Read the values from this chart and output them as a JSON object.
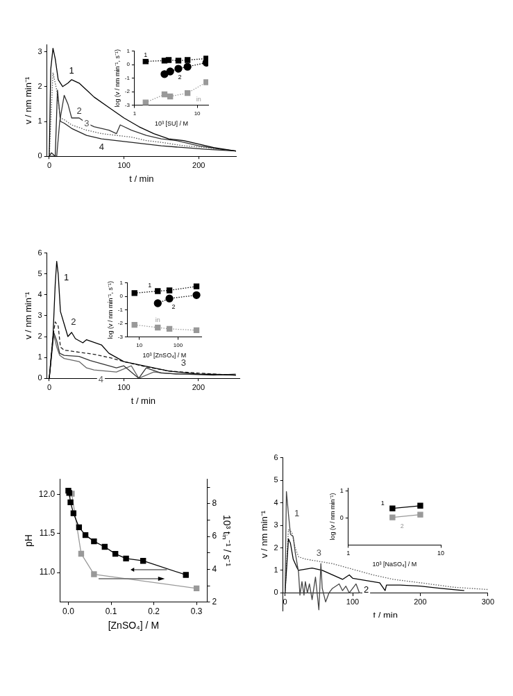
{
  "chart_data": [
    {
      "type": "line",
      "xlabel": "t / min",
      "ylabel": "v / nm min⁻¹",
      "xlim": [
        -3,
        250
      ],
      "ylim": [
        0,
        3.2
      ],
      "xticks": [
        0,
        100,
        200
      ],
      "yticks": [
        0,
        1,
        2,
        3
      ],
      "series": [
        {
          "name": "1",
          "color": "#000000",
          "line_style": "solid",
          "x": [
            0,
            2,
            5,
            8,
            12,
            18,
            25,
            30,
            40,
            50,
            60,
            80,
            100,
            120,
            140,
            160,
            180,
            200,
            220,
            250
          ],
          "values": [
            0,
            2.5,
            3.1,
            2.8,
            2.2,
            2.0,
            2.1,
            2.2,
            2.1,
            1.9,
            1.7,
            1.4,
            1.1,
            0.85,
            0.65,
            0.5,
            0.45,
            0.35,
            0.25,
            0.15
          ]
        },
        {
          "name": "2",
          "color": "#333333",
          "line_style": "solid",
          "x": [
            0,
            10,
            14,
            20,
            25,
            30,
            40,
            50,
            60,
            80,
            90,
            95,
            110,
            130,
            150,
            170,
            200,
            230,
            250
          ],
          "values": [
            0,
            0,
            1.0,
            1.75,
            1.5,
            1.1,
            1.1,
            0.95,
            0.85,
            0.75,
            0.65,
            0.9,
            0.75,
            0.6,
            0.5,
            0.45,
            0.3,
            0.2,
            0.15
          ]
        },
        {
          "name": "3",
          "color": "#555555",
          "line_style": "dotted",
          "x": [
            0,
            5,
            10,
            15,
            20,
            30,
            50,
            70,
            90,
            110,
            130,
            150,
            180,
            210,
            250
          ],
          "values": [
            0,
            2.4,
            1.9,
            1.1,
            1.05,
            0.9,
            0.75,
            0.65,
            0.6,
            0.55,
            0.45,
            0.4,
            0.3,
            0.25,
            0.15
          ]
        },
        {
          "name": "4",
          "color": "#222222",
          "line_style": "solid",
          "x": [
            0,
            3,
            8,
            11,
            15,
            20,
            30,
            50,
            70,
            90,
            110,
            130,
            150,
            180,
            210,
            250
          ],
          "values": [
            0,
            0.1,
            0,
            1.9,
            1.0,
            0.95,
            0.8,
            0.6,
            0.5,
            0.45,
            0.4,
            0.35,
            0.3,
            0.25,
            0.2,
            0.15
          ]
        }
      ]
    },
    {
      "type": "line",
      "xlabel": "10³ [SU] / M",
      "ylabel": "log (v / nm min⁻¹, s⁻¹)",
      "log": "x",
      "xlim": [
        1,
        15
      ],
      "ylim": [
        -3,
        1
      ],
      "xticks": [
        1,
        10
      ],
      "yticks": [
        -3,
        -2,
        -1,
        0,
        1
      ],
      "line_style": "dotted",
      "series": [
        {
          "name": "1",
          "color": "#000000",
          "marker": "square",
          "x": [
            1.5,
            3,
            3.5,
            5,
            7,
            14
          ],
          "values": [
            0.25,
            0.3,
            0.35,
            0.3,
            0.35,
            0.45
          ]
        },
        {
          "name": "2",
          "color": "#000000",
          "marker": "circle",
          "x": [
            3,
            3.7,
            5,
            7,
            14
          ],
          "values": [
            -0.7,
            -0.5,
            -0.3,
            -0.15,
            0.15
          ]
        },
        {
          "name": "in",
          "color": "#999999",
          "marker": "square",
          "x": [
            1.5,
            3,
            3.7,
            7,
            14
          ],
          "values": [
            -2.8,
            -2.2,
            -2.35,
            -2.1,
            -1.3
          ]
        }
      ]
    },
    {
      "type": "line",
      "xlabel": "t / min",
      "ylabel": "v / nm min⁻¹",
      "xlim": [
        -3,
        255
      ],
      "ylim": [
        0,
        6
      ],
      "xticks": [
        0,
        100,
        200
      ],
      "yticks": [
        0,
        1,
        2,
        3,
        4,
        5,
        6
      ],
      "series": [
        {
          "name": "1",
          "color": "#000000",
          "line_style": "solid",
          "x": [
            0,
            5,
            8,
            10,
            12,
            15,
            20,
            25,
            30,
            35,
            45,
            50,
            70,
            80,
            100,
            120,
            140,
            160,
            200,
            250
          ],
          "values": [
            0,
            2,
            4.5,
            5.6,
            5.0,
            3.2,
            2.6,
            2.0,
            2.2,
            1.9,
            1.7,
            1.85,
            1.6,
            1.2,
            0.8,
            0.65,
            0.5,
            0.35,
            0.2,
            0.15
          ]
        },
        {
          "name": "2",
          "color": "#222222",
          "line_style": "dashed",
          "x": [
            0,
            5,
            8,
            12,
            15,
            20,
            40,
            60,
            80,
            100,
            130,
            160,
            200,
            250
          ],
          "values": [
            0,
            2.0,
            2.7,
            2.5,
            1.5,
            1.35,
            1.25,
            1.15,
            1.0,
            0.8,
            0.55,
            0.35,
            0.25,
            0.15
          ]
        },
        {
          "name": "3",
          "color": "#333333",
          "line_style": "solid",
          "x": [
            0,
            6,
            10,
            14,
            20,
            40,
            55,
            70,
            90,
            100,
            110,
            120,
            130,
            150,
            180,
            220,
            250
          ],
          "values": [
            0,
            2.2,
            1.8,
            1.2,
            1.1,
            1.05,
            0.85,
            0.7,
            0.5,
            0.6,
            0.3,
            0.0,
            0.5,
            0.25,
            0.2,
            0.15,
            0.2
          ]
        },
        {
          "name": "4",
          "color": "#666666",
          "line_style": "solid",
          "x": [
            0,
            6,
            10,
            14,
            20,
            40,
            50,
            60,
            75,
            90,
            110,
            120,
            140,
            170,
            220,
            250
          ],
          "values": [
            0,
            2.1,
            1.5,
            1.1,
            0.95,
            0.8,
            0.5,
            0.4,
            0.35,
            0.3,
            0.6,
            0.0,
            0.3,
            0.2,
            0.2,
            0.15
          ]
        }
      ]
    },
    {
      "type": "line",
      "xlabel": "10³ [ZnSO₄] / M",
      "ylabel": "log (v / nm min⁻¹, s⁻¹)",
      "log": "x",
      "xlim": [
        5,
        400
      ],
      "ylim": [
        -3,
        1
      ],
      "xticks": [
        10,
        100
      ],
      "yticks": [
        -3,
        -2,
        -1,
        0,
        1
      ],
      "line_style": "dotted",
      "series": [
        {
          "name": "1",
          "color": "#000000",
          "marker": "square",
          "x": [
            7.5,
            30,
            60,
            300
          ],
          "values": [
            0.25,
            0.4,
            0.45,
            0.75
          ]
        },
        {
          "name": "2",
          "color": "#000000",
          "marker": "circle",
          "x": [
            30,
            60,
            300
          ],
          "values": [
            -0.5,
            -0.15,
            0.1
          ]
        },
        {
          "name": "in",
          "color": "#999999",
          "marker": "square",
          "x": [
            7.5,
            30,
            60,
            300
          ],
          "values": [
            -2.1,
            -2.3,
            -2.4,
            -2.5
          ]
        }
      ]
    },
    {
      "type": "line",
      "xlabel": "[ZnSO₄] / M",
      "ylabel": "pH",
      "y2label": "10³ tᵢₙ⁻¹ / s⁻¹",
      "xlim": [
        -0.02,
        0.325
      ],
      "ylim": [
        10.62,
        12.2
      ],
      "y2lim": [
        2,
        9.5
      ],
      "xticks": [
        {
          "value": 0,
          "label": "0.0"
        },
        0.1,
        0.2,
        0.3
      ],
      "yticks": [
        {
          "value": 11,
          "label": "11.0"
        },
        {
          "value": 11.5,
          "label": "11.5"
        },
        {
          "value": 12,
          "label": "12.0"
        }
      ],
      "y2ticks": [
        2,
        {
          "value": 3,
          "label": null
        },
        4,
        {
          "value": 5,
          "label": null
        },
        6,
        {
          "value": 7,
          "label": null
        },
        8,
        {
          "value": 9,
          "label": null
        }
      ],
      "marker": "square",
      "series": [
        {
          "color": "#000000",
          "x": [
            0,
            0.002,
            0.005,
            0.012,
            0.025,
            0.04,
            0.06,
            0.085,
            0.11,
            0.135,
            0.175,
            0.275
          ],
          "values": [
            12.05,
            12.02,
            11.9,
            11.76,
            11.58,
            11.48,
            11.4,
            11.33,
            11.24,
            11.18,
            11.15,
            10.97
          ]
        },
        {
          "color": "#999999",
          "axis": "y2",
          "x": [
            0.008,
            0.03,
            0.06,
            0.3
          ],
          "values": [
            8.6,
            4.95,
            3.7,
            2.84
          ]
        }
      ]
    },
    {
      "type": "line",
      "xlabel": "t / min",
      "ylabel": "v / nm min⁻¹",
      "xlim": [
        -3,
        300
      ],
      "ylim": [
        -0.8,
        6
      ],
      "xticks": [
        0,
        100,
        200,
        300
      ],
      "yticks": [
        0,
        1,
        2,
        3,
        4,
        5,
        6
      ],
      "series": [
        {
          "name": "1",
          "color": "#444444",
          "line_style": "solid",
          "x": [
            0,
            2,
            5,
            8,
            12,
            15,
            20,
            22,
            25,
            28,
            30,
            33,
            36,
            40,
            45,
            50,
            53,
            55,
            60,
            65,
            70,
            75,
            80,
            85,
            90,
            95,
            100,
            105,
            110,
            112
          ],
          "values": [
            0,
            4.5,
            3.5,
            2.6,
            2.5,
            1.8,
            0.9,
            -0.1,
            0.5,
            -0.1,
            0.5,
            0.0,
            0.4,
            -0.3,
            0.7,
            -0.75,
            1.3,
            0.2,
            -0.4,
            0.0,
            0.2,
            0.3,
            0.4,
            0.1,
            0.3,
            0.0,
            0.2,
            0.4,
            0.0,
            0.0
          ]
        },
        {
          "name": "2",
          "color": "#000000",
          "line_style": "solid",
          "x": [
            0,
            5,
            8,
            12,
            18,
            20,
            40,
            55,
            70,
            85,
            95,
            100,
            120,
            140,
            148,
            150,
            170,
            200,
            230,
            265
          ],
          "values": [
            0,
            2.4,
            2.2,
            1.5,
            1.1,
            1.0,
            1.1,
            1.0,
            0.8,
            0.6,
            0.8,
            0.65,
            0.55,
            0.45,
            0.1,
            0.35,
            0.35,
            0.3,
            0.2,
            0.1
          ]
        },
        {
          "name": "3",
          "color": "#555555",
          "line_style": "dotted",
          "x": [
            0,
            5,
            10,
            15,
            20,
            30,
            50,
            70,
            100,
            130,
            160,
            200,
            250,
            300
          ],
          "values": [
            0,
            2.8,
            2.7,
            2.0,
            1.6,
            1.5,
            1.4,
            1.3,
            1.05,
            0.8,
            0.6,
            0.45,
            0.25,
            0.15
          ]
        }
      ]
    },
    {
      "type": "line",
      "xlabel": "10³ [NaSO₄] / M",
      "ylabel": "log (v / nm min⁻¹)",
      "log": "x",
      "xlim": [
        1,
        10
      ],
      "ylim": [
        -1,
        1.1
      ],
      "xticks": [
        1,
        10
      ],
      "yticks": [
        0,
        1
      ],
      "line_style": "solid",
      "series": [
        {
          "name": "1",
          "color": "#000000",
          "marker": "square",
          "x": [
            3,
            6
          ],
          "values": [
            0.35,
            0.45
          ]
        },
        {
          "name": "2",
          "color": "#999999",
          "marker": "square",
          "x": [
            3,
            6
          ],
          "values": [
            0.02,
            0.12
          ]
        }
      ]
    }
  ]
}
